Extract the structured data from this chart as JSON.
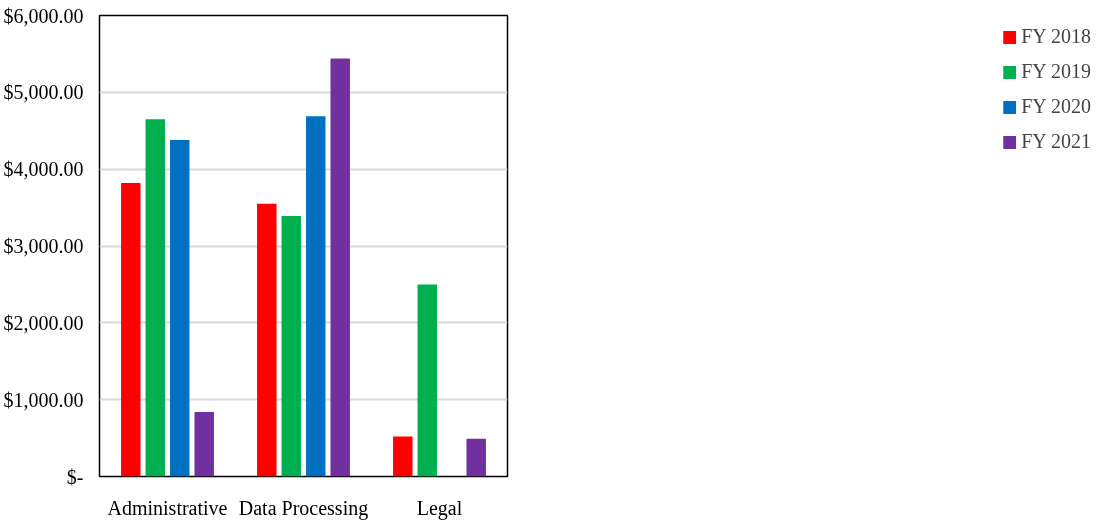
{
  "chart_data": {
    "type": "bar",
    "categories": [
      "Administrative",
      "Data Processing",
      "Legal"
    ],
    "series": [
      {
        "name": "FY 2018",
        "color": "#ff0000",
        "values": [
          3820,
          3550,
          520
        ]
      },
      {
        "name": "FY 2019",
        "color": "#00b050",
        "values": [
          4650,
          3390,
          2500
        ]
      },
      {
        "name": "FY 2020",
        "color": "#0070c0",
        "values": [
          4380,
          4690,
          0
        ]
      },
      {
        "name": "FY 2021",
        "color": "#7030a0",
        "values": [
          840,
          5440,
          490
        ]
      }
    ],
    "ylim": [
      0,
      6000
    ],
    "yticks": [
      {
        "value": 0,
        "label": "$-"
      },
      {
        "value": 1000,
        "label": "$1,000.00"
      },
      {
        "value": 2000,
        "label": "$2,000.00"
      },
      {
        "value": 3000,
        "label": "$3,000.00"
      },
      {
        "value": 4000,
        "label": "$4,000.00"
      },
      {
        "value": 5000,
        "label": "$5,000.00"
      },
      {
        "value": 6000,
        "label": "$6,000.00"
      }
    ],
    "grid": "y",
    "legend": "right"
  }
}
